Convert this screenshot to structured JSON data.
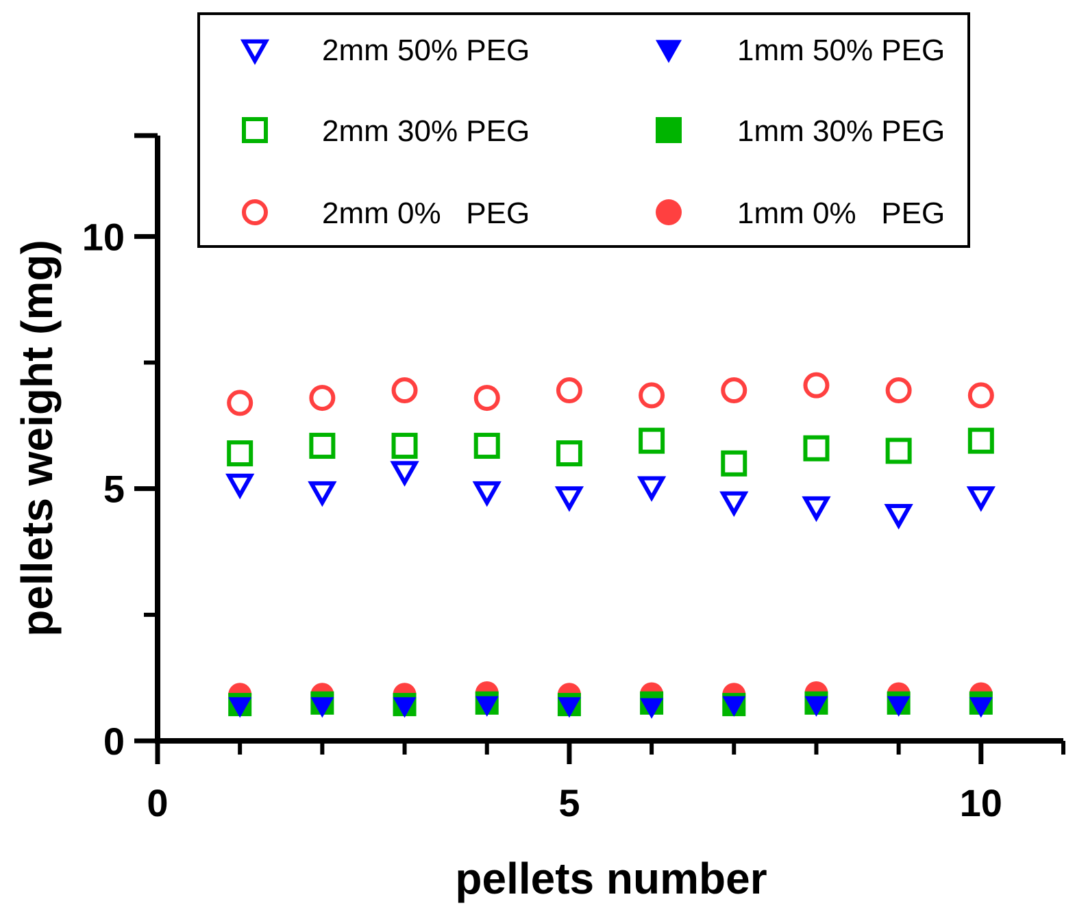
{
  "chart_data": {
    "type": "scatter",
    "title": "",
    "xlabel": "pellets number",
    "ylabel": "pellets weight (mg)",
    "xlim": [
      0,
      11
    ],
    "ylim": [
      0,
      12
    ],
    "xticks": [
      0,
      5,
      10
    ],
    "yticks": [
      0,
      5,
      10
    ],
    "xtick_labels": [
      "0",
      "5",
      "10"
    ],
    "ytick_labels": [
      "0",
      "5",
      "10"
    ],
    "legend_position": "top",
    "x": [
      1,
      2,
      3,
      4,
      5,
      6,
      7,
      8,
      9,
      10
    ],
    "series": [
      {
        "name": "2mm 50% PEG",
        "marker": "triangle-down",
        "filled": false,
        "color": "#0000ff",
        "values": [
          5.1,
          4.95,
          5.35,
          4.95,
          4.85,
          5.05,
          4.75,
          4.65,
          4.5,
          4.85
        ]
      },
      {
        "name": "1mm 50% PEG",
        "marker": "triangle-down",
        "filled": true,
        "color": "#0000ff",
        "values": [
          0.7,
          0.7,
          0.7,
          0.72,
          0.7,
          0.68,
          0.72,
          0.72,
          0.72,
          0.7
        ]
      },
      {
        "name": "2mm 30% PEG",
        "marker": "square",
        "filled": false,
        "color": "#00b400",
        "values": [
          5.7,
          5.85,
          5.85,
          5.85,
          5.7,
          5.95,
          5.5,
          5.8,
          5.75,
          5.95
        ]
      },
      {
        "name": "1mm 30% PEG",
        "marker": "square",
        "filled": true,
        "color": "#00b400",
        "values": [
          0.72,
          0.75,
          0.72,
          0.75,
          0.72,
          0.75,
          0.72,
          0.75,
          0.75,
          0.75
        ]
      },
      {
        "name": "2mm 0%   PEG",
        "marker": "circle",
        "filled": false,
        "color": "#ff4040",
        "values": [
          6.7,
          6.8,
          6.95,
          6.8,
          6.95,
          6.85,
          6.95,
          7.05,
          6.95,
          6.85
        ]
      },
      {
        "name": "1mm 0%   PEG",
        "marker": "circle",
        "filled": true,
        "color": "#ff4040",
        "values": [
          0.92,
          0.92,
          0.92,
          0.95,
          0.92,
          0.93,
          0.92,
          0.95,
          0.93,
          0.93
        ]
      }
    ]
  }
}
